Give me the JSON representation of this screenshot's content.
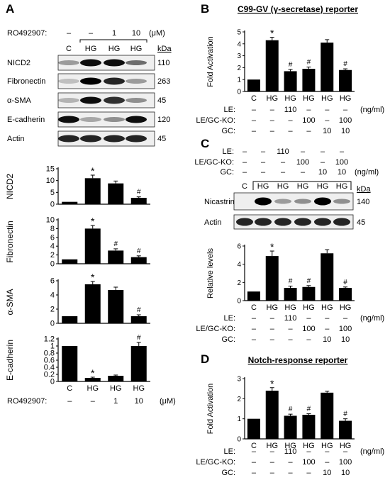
{
  "panel_letters": [
    "A",
    "B",
    "C",
    "D"
  ],
  "conditions": [
    "C",
    "HG",
    "HG",
    "HG"
  ],
  "conditions6": [
    "C",
    "HG",
    "HG",
    "HG",
    "HG",
    "HG"
  ],
  "panelA": {
    "treatment_label": "RO492907:",
    "doses": [
      "–",
      "–",
      "1",
      "10"
    ],
    "unit": "(μM)",
    "kda_label": "kDa",
    "blots": [
      {
        "name": "NICD2",
        "kda": "110",
        "intensity": [
          0.35,
          0.95,
          0.95,
          0.55
        ]
      },
      {
        "name": "Fibronectin",
        "kda": "263",
        "intensity": [
          0.2,
          1.0,
          0.85,
          0.35
        ]
      },
      {
        "name": "α-SMA",
        "kda": "45",
        "intensity": [
          0.25,
          0.95,
          0.8,
          0.4
        ]
      },
      {
        "name": "E-cadherin",
        "kda": "120",
        "intensity": [
          0.95,
          0.3,
          0.4,
          0.95
        ]
      },
      {
        "name": "Actin",
        "kda": "45",
        "intensity": [
          0.85,
          0.85,
          0.85,
          0.85
        ]
      }
    ],
    "bottom_treatment_label": "RO492907:",
    "bottom_doses": [
      "–",
      "–",
      "1",
      "10"
    ],
    "bottom_unit": "(μM)"
  },
  "panelB": {
    "title": "C99-GV (γ-secretase) reporter",
    "treatment_rows": [
      {
        "label": "LE:",
        "values": [
          "–",
          "–",
          "110",
          "–",
          "–",
          "–"
        ],
        "unit": "(ng/ml)"
      },
      {
        "label": "LE/GC-KO:",
        "values": [
          "–",
          "–",
          "–",
          "100",
          "–",
          "100"
        ],
        "unit": ""
      },
      {
        "label": "GC:",
        "values": [
          "–",
          "–",
          "–",
          "–",
          "10",
          "10"
        ],
        "unit": ""
      }
    ]
  },
  "panelC": {
    "treatment_rows": [
      {
        "label": "LE:",
        "values": [
          "–",
          "–",
          "110",
          "–",
          "–",
          "–"
        ],
        "unit": ""
      },
      {
        "label": "LE/GC-KO:",
        "values": [
          "–",
          "–",
          "–",
          "100",
          "–",
          "100"
        ],
        "unit": ""
      },
      {
        "label": "GC:",
        "values": [
          "–",
          "–",
          "–",
          "–",
          "10",
          "10"
        ],
        "unit": "(ng/ml)"
      }
    ],
    "kda_label": "kDa",
    "blots": [
      {
        "name": "Nicastrin",
        "kda": "140",
        "intensity": [
          0.05,
          1.0,
          0.35,
          0.4,
          1.0,
          0.4
        ]
      },
      {
        "name": "Actin",
        "kda": "45",
        "intensity": [
          0.85,
          0.85,
          0.85,
          0.85,
          0.85,
          0.85
        ]
      }
    ],
    "bottom_rows": [
      {
        "label": "LE:",
        "values": [
          "–",
          "–",
          "110",
          "–",
          "–",
          "–"
        ],
        "unit": "(ng/ml)"
      },
      {
        "label": "LE/GC-KO:",
        "values": [
          "–",
          "–",
          "–",
          "100",
          "–",
          "100"
        ],
        "unit": ""
      },
      {
        "label": "GC:",
        "values": [
          "–",
          "–",
          "–",
          "–",
          "10",
          "10"
        ],
        "unit": ""
      }
    ]
  },
  "panelD": {
    "title": "Notch-response reporter",
    "treatment_rows": [
      {
        "label": "LE:",
        "values": [
          "–",
          "–",
          "110",
          "–",
          "–",
          "–"
        ],
        "unit": "(ng/ml)"
      },
      {
        "label": "LE/GC-KO:",
        "values": [
          "–",
          "–",
          "–",
          "100",
          "–",
          "100"
        ],
        "unit": ""
      },
      {
        "label": "GC:",
        "values": [
          "–",
          "–",
          "–",
          "–",
          "10",
          "10"
        ],
        "unit": ""
      }
    ]
  },
  "chart_data": [
    {
      "id": "A-NICD2",
      "type": "bar",
      "categories": [
        "C",
        "HG",
        "HG",
        "HG"
      ],
      "values": [
        1,
        11,
        8.8,
        2.7
      ],
      "errors": [
        0,
        1.3,
        1.0,
        0.4
      ],
      "marks": [
        "",
        "*",
        "",
        "#"
      ],
      "ylabel": "NICD2",
      "ylim": [
        0,
        15
      ],
      "yticks": [
        0,
        5,
        10,
        15
      ]
    },
    {
      "id": "A-Fibronectin",
      "type": "bar",
      "categories": [
        "C",
        "HG",
        "HG",
        "HG"
      ],
      "values": [
        1,
        8,
        3,
        1.5
      ],
      "errors": [
        0,
        0.7,
        0.4,
        0.3
      ],
      "marks": [
        "",
        "*",
        "#",
        "#"
      ],
      "ylabel": "Fibronectin",
      "ylim": [
        0,
        10
      ],
      "yticks": [
        0,
        2,
        4,
        6,
        8,
        10
      ]
    },
    {
      "id": "A-aSMA",
      "type": "bar",
      "categories": [
        "C",
        "HG",
        "HG",
        "HG"
      ],
      "values": [
        1,
        5.5,
        4.7,
        1
      ],
      "errors": [
        0,
        0.4,
        0.4,
        0.2
      ],
      "marks": [
        "",
        "*",
        "",
        "#"
      ],
      "ylabel": "α-SMA",
      "ylim": [
        0,
        6
      ],
      "yticks": [
        0,
        2,
        4,
        6
      ]
    },
    {
      "id": "A-Ecadherin",
      "type": "bar",
      "categories": [
        "C",
        "HG",
        "HG",
        "HG"
      ],
      "values": [
        1,
        0.1,
        0.16,
        1
      ],
      "errors": [
        0,
        0.02,
        0.02,
        0.1
      ],
      "marks": [
        "",
        "*",
        "",
        "#"
      ],
      "ylabel": "E-cadherin",
      "ylim": [
        0,
        1.2
      ],
      "yticks": [
        0,
        0.2,
        0.4,
        0.6,
        0.8,
        1.0,
        1.2
      ]
    },
    {
      "id": "B",
      "type": "bar",
      "categories": [
        "C",
        "HG",
        "HG",
        "HG",
        "HG",
        "HG"
      ],
      "values": [
        1,
        4.3,
        1.7,
        1.9,
        4.1,
        1.8
      ],
      "errors": [
        0,
        0.25,
        0.15,
        0.15,
        0.25,
        0.1
      ],
      "marks": [
        "",
        "*",
        "#",
        "#",
        "",
        "#"
      ],
      "ylabel": "Fold Activation",
      "ylim": [
        0,
        5
      ],
      "yticks": [
        0,
        1,
        2,
        3,
        4,
        5
      ]
    },
    {
      "id": "C",
      "type": "bar",
      "categories": [
        "C",
        "HG",
        "HG",
        "HG",
        "HG",
        "HG"
      ],
      "values": [
        1,
        4.9,
        1.4,
        1.5,
        5.2,
        1.4
      ],
      "errors": [
        0,
        0.55,
        0.2,
        0.15,
        0.4,
        0.1
      ],
      "marks": [
        "",
        "*",
        "#",
        "#",
        "",
        "#"
      ],
      "ylabel": "Relative levels",
      "ylim": [
        0,
        6
      ],
      "yticks": [
        0,
        2,
        4,
        6
      ]
    },
    {
      "id": "D",
      "type": "bar",
      "categories": [
        "C",
        "HG",
        "HG",
        "HG",
        "HG",
        "HG"
      ],
      "values": [
        1,
        2.4,
        1.15,
        1.2,
        2.3,
        0.9
      ],
      "errors": [
        0,
        0.15,
        0.08,
        0.05,
        0.07,
        0.1
      ],
      "marks": [
        "",
        "*",
        "#",
        "#",
        "",
        "#"
      ],
      "ylabel": "Fold Activation",
      "ylim": [
        0,
        3
      ],
      "yticks": [
        0,
        1,
        2,
        3
      ]
    }
  ]
}
